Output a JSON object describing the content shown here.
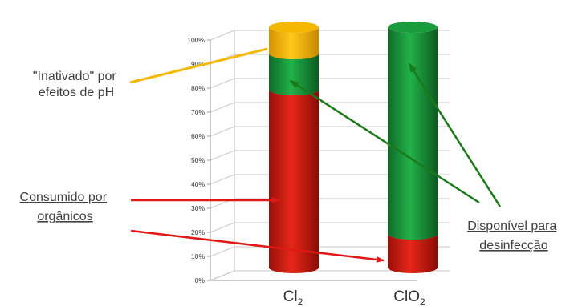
{
  "chart_data": {
    "type": "bar",
    "stacked": true,
    "three_d": true,
    "shape": "cylinder",
    "categories": [
      {
        "base": "Cl",
        "sub": "2"
      },
      {
        "base": "ClO",
        "sub": "2"
      }
    ],
    "series": [
      {
        "key": "consumed",
        "color": "#d61b10",
        "values": [
          74,
          14
        ]
      },
      {
        "key": "available",
        "color": "#1a9c3c",
        "values": [
          15,
          86
        ]
      },
      {
        "key": "inactivated",
        "color": "#f5b800",
        "values": [
          11,
          0
        ]
      }
    ],
    "ylim": [
      0,
      100
    ],
    "yticks": [
      "0%",
      "10%",
      "20%",
      "30%",
      "40%",
      "50%",
      "60%",
      "70%",
      "80%",
      "90%",
      "100%"
    ],
    "grid": true,
    "annotations": {
      "inactivated": {
        "lines": [
          "\"Inativado\" por",
          "efeitos de pH"
        ],
        "color": "#f5b800"
      },
      "consumed": {
        "lines": [
          "Consumido por",
          "orgânicos"
        ],
        "color": "#e01818"
      },
      "available": {
        "lines": [
          "Disponível para",
          "desinfecção"
        ],
        "color": "#1a7a1a"
      }
    }
  }
}
